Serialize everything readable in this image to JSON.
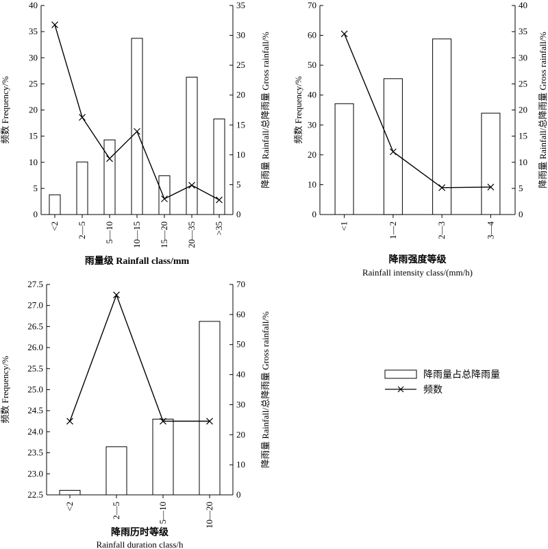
{
  "chart_data": [
    {
      "id": "rainfall-class",
      "type": "bar+line",
      "categories": [
        "<2",
        "2—5",
        "5—10",
        "10—15",
        "15—20",
        "20—35",
        ">35"
      ],
      "bar_series": {
        "name": "降雨量占总降雨量",
        "axis": "right",
        "values": [
          3.3,
          8.8,
          12.5,
          29.5,
          6.5,
          23.0,
          16.0
        ]
      },
      "line_series": {
        "name": "频数",
        "axis": "left",
        "values": [
          36.3,
          18.6,
          10.7,
          15.9,
          3.0,
          5.6,
          2.8
        ]
      },
      "left_axis": {
        "label": "频数 Frequency/%",
        "range": [
          0,
          40
        ],
        "ticks": [
          "0",
          "5",
          "10",
          "15",
          "20",
          "25",
          "30",
          "35",
          "40"
        ]
      },
      "right_axis": {
        "label": "降雨量 Rainfall/总降雨量 Gross rainfall/%",
        "range": [
          0,
          35
        ],
        "ticks": [
          "0",
          "5",
          "10",
          "15",
          "20",
          "25",
          "30",
          "35"
        ]
      },
      "xlabel_zh": "",
      "xlabel_en": "雨量级 Rainfall class/mm",
      "x_tick_rotation": -90
    },
    {
      "id": "rainfall-intensity",
      "type": "bar+line",
      "categories": [
        "<1",
        "1—2",
        "2—3",
        "3—4"
      ],
      "bar_series": {
        "name": "降雨量占总降雨量",
        "axis": "right",
        "values": [
          21.2,
          26.0,
          33.6,
          19.4
        ]
      },
      "line_series": {
        "name": "频数",
        "axis": "left",
        "values": [
          60.5,
          21.0,
          9.0,
          9.2
        ]
      },
      "left_axis": {
        "label": "频数 Frequency/%",
        "range": [
          0,
          70
        ],
        "ticks": [
          "0",
          "10",
          "20",
          "30",
          "40",
          "50",
          "60",
          "70"
        ]
      },
      "right_axis": {
        "label": "降雨量 Rainfall/总降雨量 Gross rainfall/%",
        "range": [
          0,
          40
        ],
        "ticks": [
          "0",
          "5",
          "10",
          "15",
          "20",
          "25",
          "30",
          "35",
          "40"
        ]
      },
      "xlabel_zh": "降雨强度等级",
      "xlabel_en": "Rainfall intensity class/(mm/h)",
      "x_tick_rotation": -90
    },
    {
      "id": "rainfall-duration",
      "type": "bar+line",
      "categories": [
        "<2",
        "2—5",
        "5—10",
        "10—20"
      ],
      "bar_series": {
        "name": "降雨量占总降雨量",
        "axis": "right",
        "values": [
          1.5,
          16.0,
          25.2,
          57.7
        ]
      },
      "line_series": {
        "name": "频数",
        "axis": "left",
        "values": [
          24.25,
          27.25,
          24.25,
          24.25
        ]
      },
      "left_axis": {
        "label": "频数 Frequency/%",
        "range": [
          22.5,
          27.5
        ],
        "ticks": [
          "22.5",
          "23.0",
          "23.5",
          "24.0",
          "24.5",
          "25.0",
          "25.5",
          "26.0",
          "26.5",
          "27.0",
          "27.5"
        ]
      },
      "right_axis": {
        "label": "降雨量 Rainfall/总降雨量 Gross rainfall/%",
        "range": [
          0,
          70
        ],
        "ticks": [
          "0",
          "10",
          "20",
          "30",
          "40",
          "50",
          "60",
          "70"
        ]
      },
      "xlabel_zh": "降雨历时等级",
      "xlabel_en": "Rainfall duration class/h",
      "x_tick_rotation": -90
    }
  ],
  "legend": {
    "bar_label": "降雨量占总降雨量",
    "line_label": "频数"
  }
}
